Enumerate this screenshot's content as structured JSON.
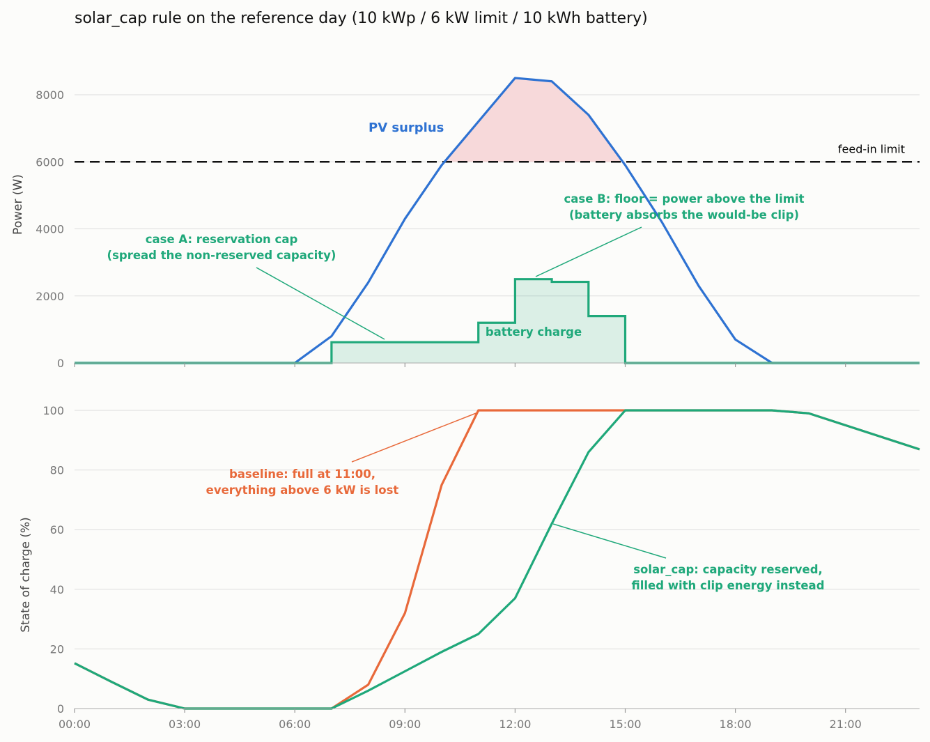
{
  "chart_data": [
    {
      "type": "line",
      "title": "solar_cap rule on the reference day (10 kWp / 6 kW limit / 10 kWh battery)",
      "ylabel": "Power (W)",
      "ylim": [
        0,
        9000
      ],
      "yticks": [
        0,
        2000,
        4000,
        6000,
        8000
      ],
      "x_hours": [
        0,
        1,
        2,
        3,
        4,
        5,
        6,
        7,
        8,
        9,
        10,
        11,
        12,
        13,
        14,
        15,
        16,
        17,
        18,
        19,
        20,
        21,
        22,
        23
      ],
      "series": [
        {
          "name": "PV surplus",
          "color": "#2e72d2",
          "values": [
            0,
            0,
            0,
            0,
            0,
            0,
            0,
            800,
            2400,
            4300,
            5900,
            7200,
            8500,
            8400,
            7400,
            5900,
            4200,
            2300,
            700,
            0,
            0,
            0,
            0,
            0
          ]
        },
        {
          "name": "battery charge",
          "color": "#1fa87a",
          "step": true,
          "values": [
            0,
            0,
            0,
            0,
            0,
            0,
            0,
            620,
            620,
            620,
            620,
            1200,
            2500,
            2420,
            1400,
            0,
            0,
            0,
            0,
            0,
            0,
            0,
            0,
            0
          ]
        }
      ],
      "feed_in_limit": {
        "value": 6000,
        "label": "feed-in limit",
        "color": "#111111"
      },
      "clip_fill_color": "#f7d9da",
      "annotations": {
        "pv_surplus": "PV surplus",
        "battery_charge": "battery charge",
        "case_a_line1": "case A: reservation cap",
        "case_a_line2": "(spread the non-reserved capacity)",
        "case_b_line1": "case B: floor = power above the limit",
        "case_b_line2": "(battery absorbs the would-be clip)"
      }
    },
    {
      "type": "line",
      "ylabel": "State of charge (%)",
      "ylim": [
        0,
        100
      ],
      "yticks": [
        0,
        20,
        40,
        60,
        80,
        100
      ],
      "x_hours": [
        0,
        1,
        2,
        3,
        4,
        5,
        6,
        7,
        8,
        9,
        10,
        11,
        12,
        13,
        14,
        15,
        16,
        17,
        18,
        19,
        20,
        21,
        22,
        23
      ],
      "x_tick_labels": [
        "00:00",
        "03:00",
        "06:00",
        "09:00",
        "12:00",
        "15:00",
        "18:00",
        "21:00"
      ],
      "series": [
        {
          "name": "baseline",
          "color": "#e8693a",
          "values": [
            15.2,
            9,
            3,
            0,
            0,
            0,
            0,
            0,
            8,
            32,
            75,
            100,
            100,
            100,
            100,
            100,
            100,
            100,
            100,
            100,
            99,
            95,
            91,
            87
          ]
        },
        {
          "name": "solar_cap",
          "color": "#1fa87a",
          "values": [
            15.2,
            9,
            3,
            0,
            0,
            0,
            0,
            0,
            6,
            12.5,
            19,
            25,
            37,
            62,
            86,
            100,
            100,
            100,
            100,
            100,
            99,
            95,
            91,
            87
          ]
        }
      ],
      "annotations": {
        "baseline_line1": "baseline: full at 11:00,",
        "baseline_line2": "everything above 6 kW is lost",
        "solar_cap_line1": "solar_cap: capacity reserved,",
        "solar_cap_line2": "filled with clip energy instead"
      }
    }
  ]
}
